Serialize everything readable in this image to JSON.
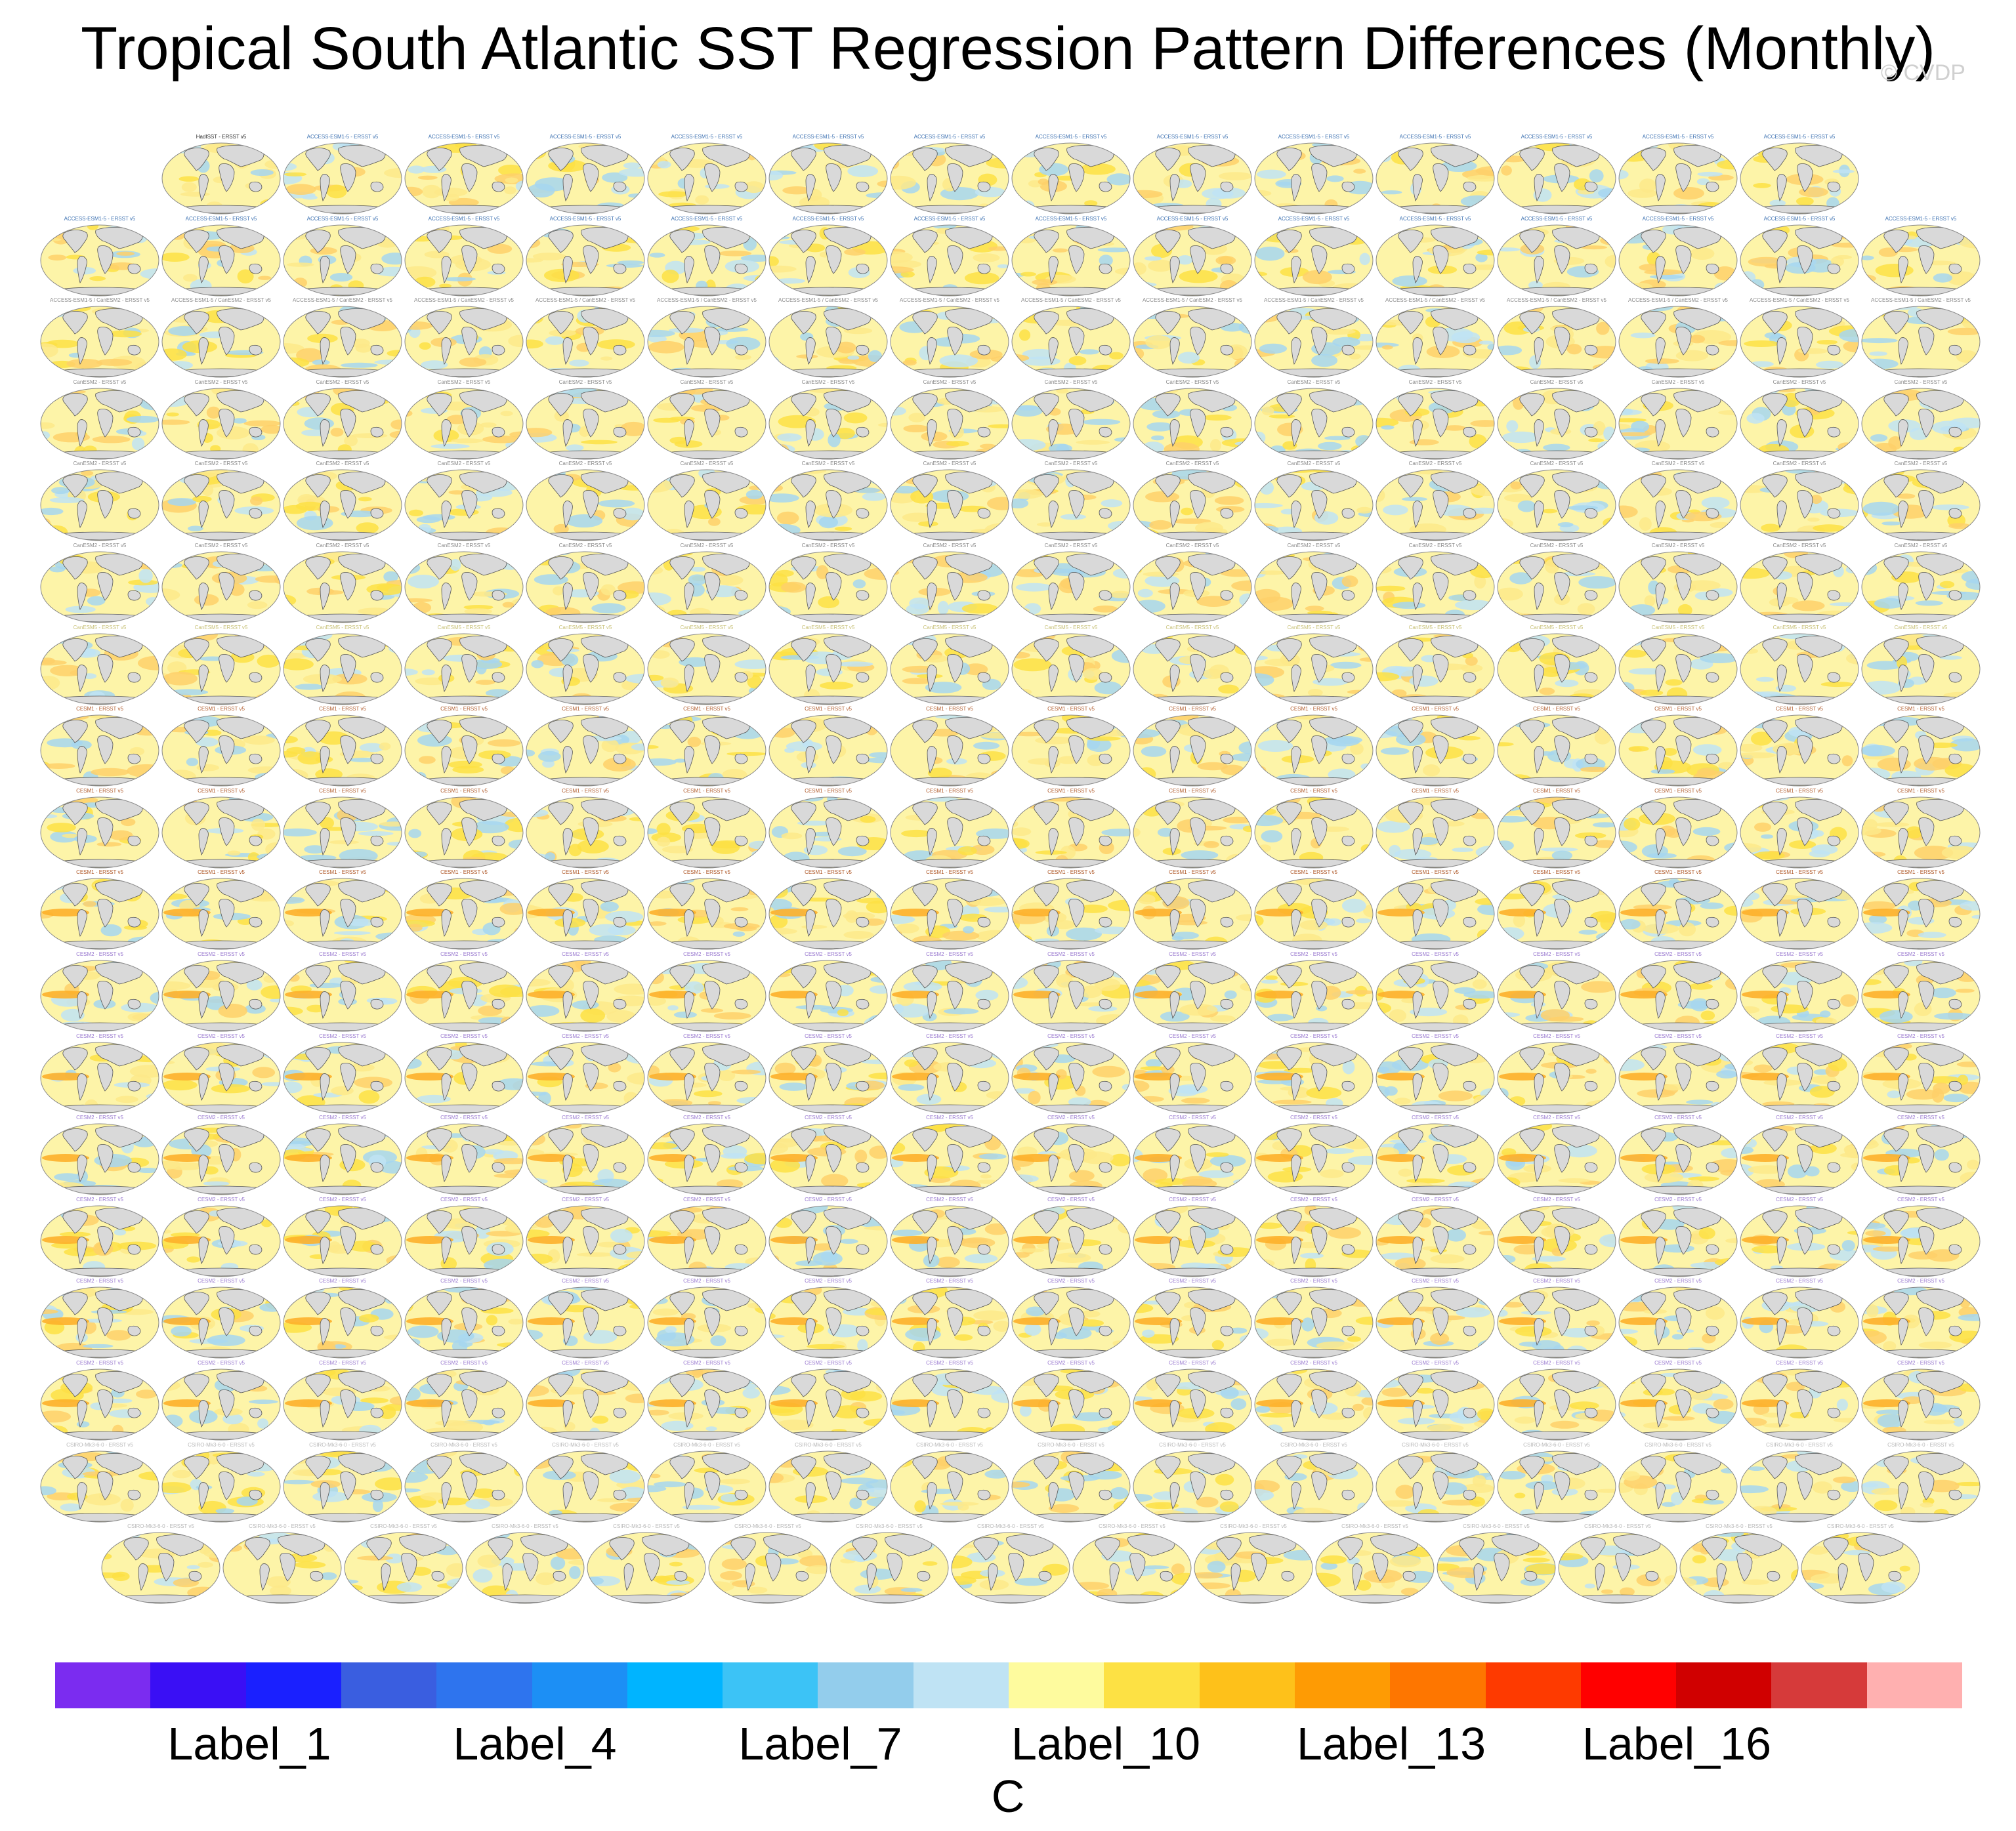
{
  "title": "Tropical South Atlantic SST Regression Pattern Differences (Monthly)",
  "watermark": "© CVDP",
  "panels": {
    "first_caption": "HadISST - ERSST v5",
    "caption_suffix": " - ERSST v5",
    "rows": [
      {
        "n": 14,
        "model": "ACCESS-ESM1-5",
        "color": "#3a6fb0"
      },
      {
        "n": 16,
        "model": "ACCESS-ESM1-5",
        "color": "#3a6fb0"
      },
      {
        "n": 16,
        "model": "ACCESS-ESM1-5 / CanESM2",
        "color": "#8a8a8a"
      },
      {
        "n": 16,
        "model": "CanESM2",
        "color": "#8a8a8a"
      },
      {
        "n": 16,
        "model": "CanESM2",
        "color": "#8a8a8a"
      },
      {
        "n": 16,
        "model": "CanESM2",
        "color": "#8a8a8a"
      },
      {
        "n": 16,
        "model": "CanESM5",
        "color": "#c9c27a"
      },
      {
        "n": 16,
        "model": "CESM1",
        "color": "#b05a2a"
      },
      {
        "n": 16,
        "model": "CESM1",
        "color": "#b05a2a"
      },
      {
        "n": 16,
        "model": "CESM1",
        "color": "#b05a2a"
      },
      {
        "n": 16,
        "model": "CESM2",
        "color": "#9b7bd0"
      },
      {
        "n": 16,
        "model": "CESM2",
        "color": "#9b7bd0"
      },
      {
        "n": 16,
        "model": "CESM2",
        "color": "#9b7bd0"
      },
      {
        "n": 16,
        "model": "CESM2",
        "color": "#9b7bd0"
      },
      {
        "n": 16,
        "model": "CESM2",
        "color": "#9b7bd0"
      },
      {
        "n": 16,
        "model": "CESM2",
        "color": "#9b7bd0"
      },
      {
        "n": 16,
        "model": "CSIRO-Mk3-6-0",
        "color": "#b8b8b8"
      },
      {
        "n": 15,
        "model": "CSIRO-Mk3-6-0",
        "color": "#b8b8b8"
      }
    ]
  },
  "colorbar": {
    "colors": [
      "#7b2cf0",
      "#3a0ff5",
      "#1a20ff",
      "#3a5ee0",
      "#2e74ee",
      "#1c8ff5",
      "#00b4ff",
      "#3cc3f6",
      "#93cdec",
      "#bfe3f4",
      "#fefb9e",
      "#fde144",
      "#fec11a",
      "#fe9b04",
      "#fe7600",
      "#fe3a00",
      "#ff0000",
      "#d00000",
      "#d63a3a",
      "#ffb0b0"
    ],
    "labels": [
      "Label_1",
      "Label_4",
      "Label_7",
      "Label_10",
      "Label_13",
      "Label_16"
    ],
    "unit": "C"
  }
}
